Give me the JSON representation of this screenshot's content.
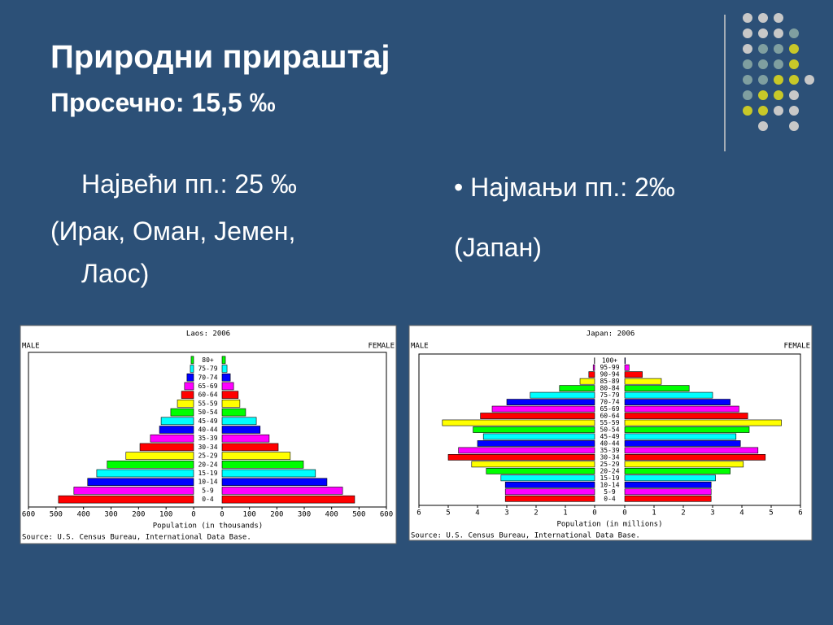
{
  "slide": {
    "title": "Природни прираштај",
    "subtitle": "Просечно: 15,5 ‰",
    "left_bullet": "Највећи пп.: 25 ‰",
    "left_note": [
      "(Ирак, Оман, Јемен,",
      "Лаос)"
    ],
    "right_bullet": "• Најмањи пп.: 2‰",
    "right_note": "(Јапан)"
  },
  "chart_data": [
    {
      "type": "pyramid",
      "title": "Laos: 2006",
      "left_label": "MALE",
      "right_label": "FEMALE",
      "xlabel": "Population (in thousands)",
      "source": "Source: U.S. Census Bureau, International Data Base.",
      "categories": [
        "0-4",
        "5-9",
        "10-14",
        "15-19",
        "20-24",
        "25-29",
        "30-34",
        "35-39",
        "40-44",
        "45-49",
        "50-54",
        "55-59",
        "60-64",
        "65-69",
        "70-74",
        "75-79",
        "80+"
      ],
      "series": [
        {
          "name": "MALE",
          "values": [
            491,
            435,
            385,
            352,
            314,
            246,
            195,
            157,
            124,
            118,
            83,
            59,
            44,
            33,
            24,
            12,
            9
          ]
        },
        {
          "name": "FEMALE",
          "values": [
            484,
            440,
            383,
            341,
            297,
            249,
            205,
            172,
            139,
            125,
            86,
            65,
            59,
            42,
            30,
            18,
            12
          ]
        }
      ],
      "palette": [
        "#ff0000",
        "#ff00ff",
        "#0000ff",
        "#00ffff",
        "#00ff00",
        "#ffff00"
      ],
      "xlim": [
        0,
        600
      ],
      "xticks": [
        0,
        100,
        200,
        300,
        400,
        500,
        600
      ]
    },
    {
      "type": "pyramid",
      "title": "Japan: 2006",
      "left_label": "MALE",
      "right_label": "FEMALE",
      "xlabel": "Population (in millions)",
      "source": "Source: U.S. Census Bureau, International Data Base.",
      "categories": [
        "0-4",
        "5-9",
        "10-14",
        "15-19",
        "20-24",
        "25-29",
        "30-34",
        "35-39",
        "40-44",
        "45-49",
        "50-54",
        "55-59",
        "60-64",
        "65-69",
        "70-74",
        "75-79",
        "80-84",
        "85-89",
        "90-94",
        "95-99",
        "100+"
      ],
      "series": [
        {
          "name": "MALE",
          "values": [
            3.05,
            3.05,
            3.05,
            3.2,
            3.7,
            4.2,
            5.0,
            4.65,
            4.0,
            3.8,
            4.15,
            5.2,
            3.9,
            3.5,
            3.0,
            2.2,
            1.2,
            0.5,
            0.2,
            0.05,
            0.01
          ]
        },
        {
          "name": "FEMALE",
          "values": [
            2.95,
            2.95,
            2.95,
            3.1,
            3.6,
            4.05,
            4.8,
            4.55,
            3.95,
            3.8,
            4.25,
            5.35,
            4.2,
            3.9,
            3.6,
            3.0,
            2.2,
            1.25,
            0.6,
            0.15,
            0.02
          ]
        }
      ],
      "palette": [
        "#ff0000",
        "#ff00ff",
        "#0000ff",
        "#00ffff",
        "#00ff00",
        "#ffff00"
      ],
      "xlim": [
        0,
        6
      ],
      "xticks": [
        0,
        1,
        2,
        3,
        4,
        5,
        6
      ]
    }
  ]
}
